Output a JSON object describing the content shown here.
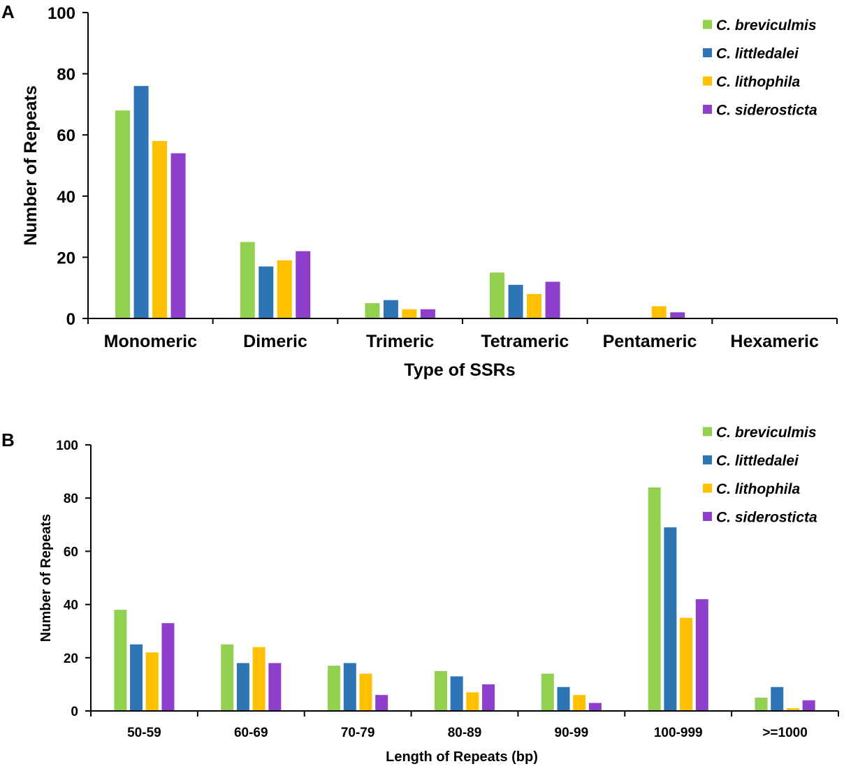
{
  "chart_data": [
    {
      "panel": "A",
      "type": "bar",
      "xlabel": "Type of SSRs",
      "ylabel": "Number of Repeats",
      "ylim": [
        0,
        100
      ],
      "yticks": [
        "0",
        "20",
        "40",
        "60",
        "80",
        "100"
      ],
      "categories": [
        "Monomeric",
        "Dimeric",
        "Trimeric",
        "Tetrameric",
        "Pentameric",
        "Hexameric"
      ],
      "series": [
        {
          "name": "C. breviculmis",
          "color": "#92D050",
          "values": [
            68,
            25,
            5,
            15,
            0,
            0
          ]
        },
        {
          "name": "C. littledalei",
          "color": "#2E75B6",
          "values": [
            76,
            17,
            6,
            11,
            0,
            0
          ]
        },
        {
          "name": "C. lithophila",
          "color": "#FFC000",
          "values": [
            58,
            19,
            3,
            8,
            4,
            0
          ]
        },
        {
          "name": "C. siderosticta",
          "color": "#8E3FCC",
          "values": [
            54,
            22,
            3,
            12,
            2,
            0
          ]
        }
      ],
      "legend": "top-right"
    },
    {
      "panel": "B",
      "type": "bar",
      "xlabel": "Length of Repeats (bp)",
      "ylabel": "Number of Repeats",
      "ylim": [
        0,
        100
      ],
      "yticks": [
        "0",
        "20",
        "40",
        "60",
        "80",
        "100"
      ],
      "categories": [
        "50-59",
        "60-69",
        "70-79",
        "80-89",
        "90-99",
        "100-999",
        ">=1000"
      ],
      "series": [
        {
          "name": "C. breviculmis",
          "color": "#92D050",
          "values": [
            38,
            25,
            17,
            15,
            14,
            84,
            5
          ]
        },
        {
          "name": "C. littledalei",
          "color": "#2E75B6",
          "values": [
            25,
            18,
            18,
            13,
            9,
            69,
            9
          ]
        },
        {
          "name": "C. lithophila",
          "color": "#FFC000",
          "values": [
            22,
            24,
            14,
            7,
            6,
            35,
            1
          ]
        },
        {
          "name": "C. siderosticta",
          "color": "#8E3FCC",
          "values": [
            33,
            18,
            6,
            10,
            3,
            42,
            4
          ]
        }
      ],
      "legend": "top-right"
    }
  ]
}
